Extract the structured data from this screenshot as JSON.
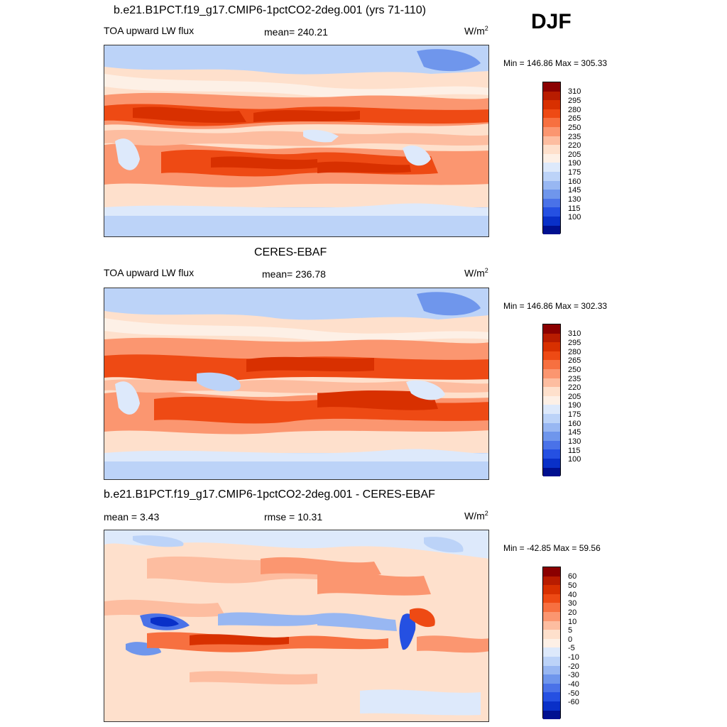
{
  "season": "DJF",
  "panels": [
    {
      "title": "b.e21.B1PCT.f19_g17.CMIP6-1pctCO2-2deg.001 (yrs 71-110)",
      "left_label": "TOA upward LW flux",
      "center_label": "mean= 240.21",
      "units": "W/m",
      "units_sup": "2",
      "minmax": "Min = 146.86 Max = 305.33"
    },
    {
      "title": "CERES-EBAF",
      "left_label": "TOA upward LW flux",
      "center_label": "mean= 236.78",
      "units": "W/m",
      "units_sup": "2",
      "minmax": "Min = 146.86 Max = 302.33"
    },
    {
      "title": "b.e21.B1PCT.f19_g17.CMIP6-1pctCO2-2deg.001 - CERES-EBAF",
      "left_label": "mean =   3.43",
      "center_label": "rmse =  10.31",
      "units": "W/m",
      "units_sup": "2",
      "minmax": "Min = -42.85 Max =  59.56"
    }
  ],
  "colorbar_abs": {
    "labels": [
      "310",
      "295",
      "280",
      "265",
      "250",
      "235",
      "220",
      "205",
      "190",
      "175",
      "160",
      "145",
      "130",
      "115",
      "100"
    ],
    "colors": [
      "#8b0000",
      "#b81c00",
      "#d83000",
      "#ee4a14",
      "#f77040",
      "#fb9670",
      "#fdbda0",
      "#fee0cc",
      "#fdf0e6",
      "#dde9fb",
      "#bcd3f8",
      "#98b7f2",
      "#6f96ec",
      "#4a72e8",
      "#2550e2",
      "#0930c8",
      "#001090"
    ]
  },
  "colorbar_diff": {
    "labels": [
      "60",
      "50",
      "40",
      "30",
      "20",
      "10",
      "5",
      "0",
      "-5",
      "-10",
      "-20",
      "-30",
      "-40",
      "-50",
      "-60"
    ],
    "colors": [
      "#8b0000",
      "#b81c00",
      "#d83000",
      "#ee4a14",
      "#f77040",
      "#fb9670",
      "#fdbda0",
      "#fee0cc",
      "#fdf0e6",
      "#dde9fb",
      "#bcd3f8",
      "#98b7f2",
      "#6f96ec",
      "#4a72e8",
      "#2550e2",
      "#0930c8",
      "#001090"
    ]
  }
}
